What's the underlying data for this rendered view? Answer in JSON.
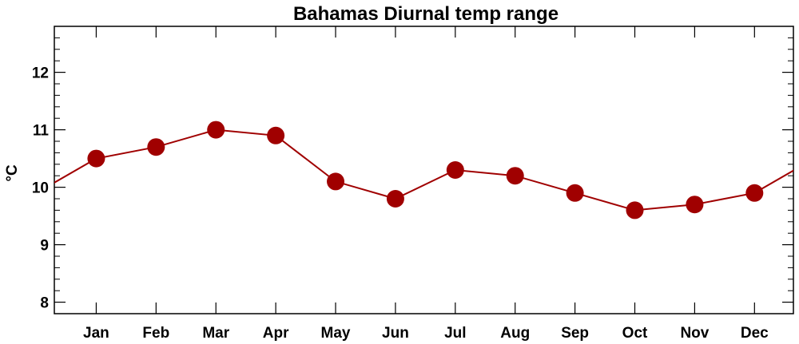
{
  "chart_data": {
    "type": "line",
    "title": "Bahamas Diurnal temp range",
    "xlabel": "",
    "ylabel": "°C",
    "categories": [
      "Jan",
      "Feb",
      "Mar",
      "Apr",
      "May",
      "Jun",
      "Jul",
      "Aug",
      "Sep",
      "Oct",
      "Nov",
      "Dec"
    ],
    "series": [
      {
        "values": [
          10.5,
          10.7,
          11.0,
          10.9,
          10.1,
          9.8,
          10.3,
          10.2,
          9.9,
          9.6,
          9.7,
          9.9
        ]
      }
    ],
    "ylim": [
      7.8,
      12.8
    ],
    "yticks": [
      "8",
      "9",
      "10",
      "11",
      "12"
    ],
    "grid": false,
    "line_wraps_cyclically": true,
    "colors": {
      "series": "#a00000",
      "axis": "#000000"
    }
  }
}
